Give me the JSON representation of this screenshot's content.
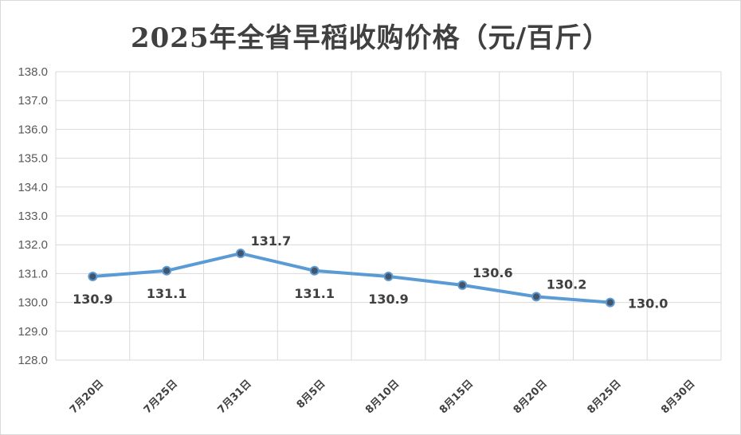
{
  "chart_data": {
    "type": "line",
    "title": "2025年全省早稻收购价格（元/百斤）",
    "categories": [
      "7月20日",
      "7月25日",
      "7月31日",
      "8月5日",
      "8月10日",
      "8月15日",
      "8月20日",
      "8月25日",
      "8月30日"
    ],
    "series": [
      {
        "values": [
          130.9,
          131.1,
          131.7,
          131.1,
          130.9,
          130.6,
          130.2,
          130.0,
          null
        ]
      }
    ],
    "data_labels": [
      "130.9",
      "131.1",
      "131.7",
      "131.1",
      "130.9",
      "130.6",
      "130.2",
      "130.0"
    ],
    "ylim": [
      128.0,
      138.0
    ],
    "y_ticks": [
      "128.0",
      "129.0",
      "130.0",
      "131.0",
      "132.0",
      "133.0",
      "134.0",
      "135.0",
      "136.0",
      "137.0",
      "138.0"
    ],
    "grid": true,
    "legend": "none",
    "colors": {
      "line": "#5b9bd5",
      "marker_fill": "#44546a",
      "grid": "#d9d9d9",
      "text": "#404040"
    }
  }
}
